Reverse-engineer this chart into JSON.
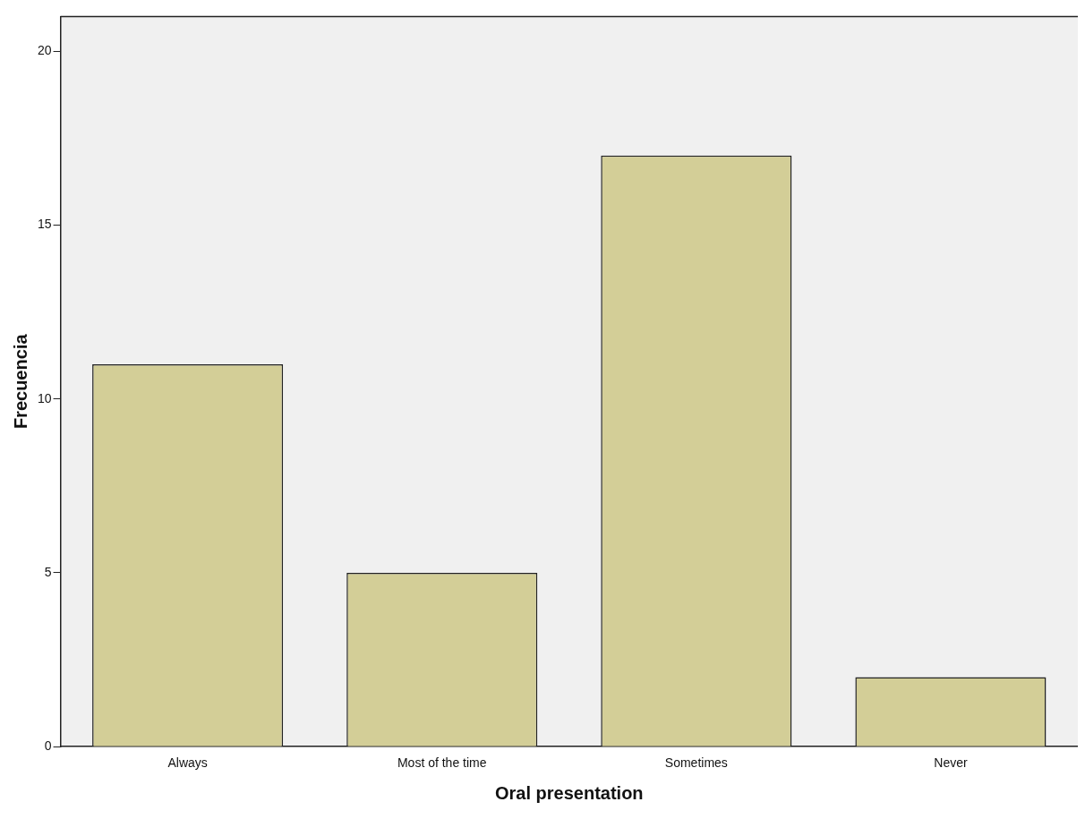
{
  "chart_data": {
    "type": "bar",
    "xlabel": "Oral presentation",
    "ylabel": "Frecuencia",
    "categories": [
      "Always",
      "Most of the time",
      "Sometimes",
      "Never"
    ],
    "values": [
      11,
      5,
      17,
      2
    ],
    "color": "#d3ce97",
    "ylim": [
      0,
      21
    ],
    "yticks": [
      0,
      5,
      10,
      15,
      20
    ],
    "grid": false,
    "legend": false
  }
}
